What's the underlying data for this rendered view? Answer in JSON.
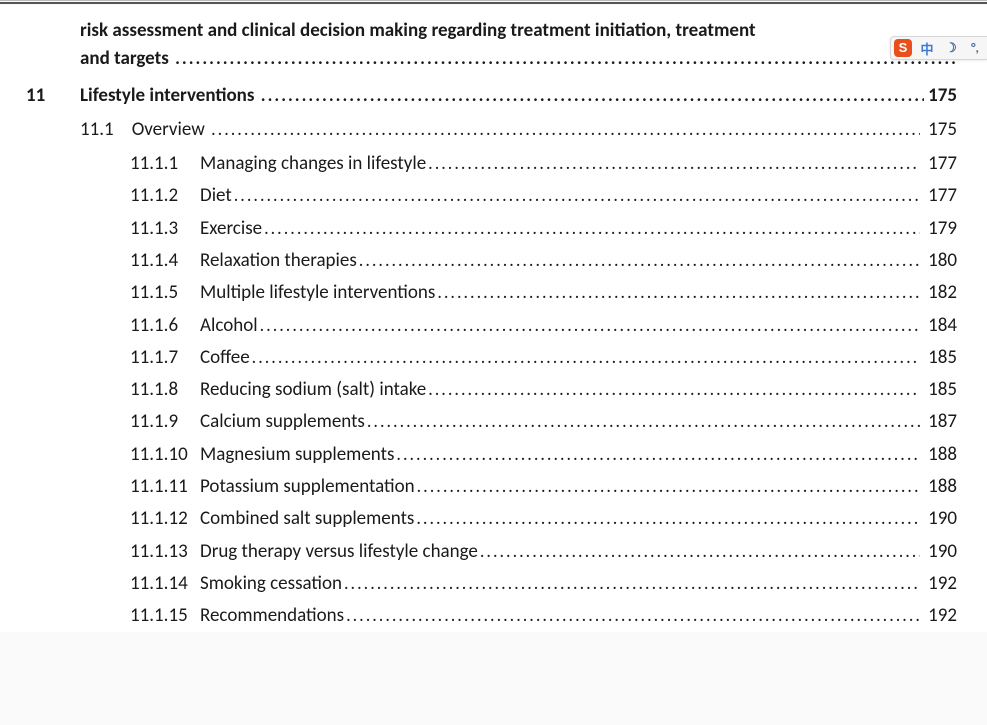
{
  "colors": {
    "text": "#1a1a1a",
    "page_bg": "#ffffff",
    "body_bg": "#fafafa",
    "top_rule": "#555555",
    "widget_bg": "#f6f6f6",
    "widget_border": "#d7d7d7",
    "s_badge_bg": "#e94e1b",
    "s_badge_fg": "#ffffff",
    "widget_accent": "#3b7bd6"
  },
  "typography": {
    "font_family": "Calibri",
    "chapter_fontsize": 19,
    "section_fontsize": 19,
    "sub_fontsize": 19,
    "chapter_weight": 700,
    "normal_weight": 400
  },
  "partial_entry": {
    "line1": "risk assessment and clinical decision making regarding treatment initiation, treatment",
    "line2": "and targets"
  },
  "chapter": {
    "number": "11",
    "title": "Lifestyle interventions",
    "page": "175"
  },
  "section": {
    "number": "11.1",
    "title": "Overview",
    "page": "175"
  },
  "subs": [
    {
      "number": "11.1.1",
      "title": "Managing changes in lifestyle",
      "page": "177"
    },
    {
      "number": "11.1.2",
      "title": "Diet",
      "page": "177"
    },
    {
      "number": "11.1.3",
      "title": "Exercise",
      "page": "179"
    },
    {
      "number": "11.1.4",
      "title": "Relaxation therapies",
      "page": "180"
    },
    {
      "number": "11.1.5",
      "title": "Multiple lifestyle interventions",
      "page": "182"
    },
    {
      "number": "11.1.6",
      "title": "Alcohol",
      "page": "184"
    },
    {
      "number": "11.1.7",
      "title": "Coffee",
      "page": "185"
    },
    {
      "number": "11.1.8",
      "title": "Reducing sodium (salt) intake",
      "page": "185"
    },
    {
      "number": "11.1.9",
      "title": "Calcium supplements",
      "page": "187"
    },
    {
      "number": "11.1.10",
      "title": "Magnesium supplements",
      "page": "188"
    },
    {
      "number": "11.1.11",
      "title": "Potassium supplementation",
      "page": "188"
    },
    {
      "number": "11.1.12",
      "title": "Combined salt supplements",
      "page": "190"
    },
    {
      "number": "11.1.13",
      "title": "Drug therapy versus lifestyle change",
      "page": "190"
    },
    {
      "number": "11.1.14",
      "title": "Smoking cessation",
      "page": "192"
    },
    {
      "number": "11.1.15",
      "title": "Recommendations",
      "page": "192"
    }
  ],
  "widget": {
    "s_label": "S",
    "lang_label": "中",
    "moon_glyph": "☽",
    "punct_glyph": "°,"
  }
}
